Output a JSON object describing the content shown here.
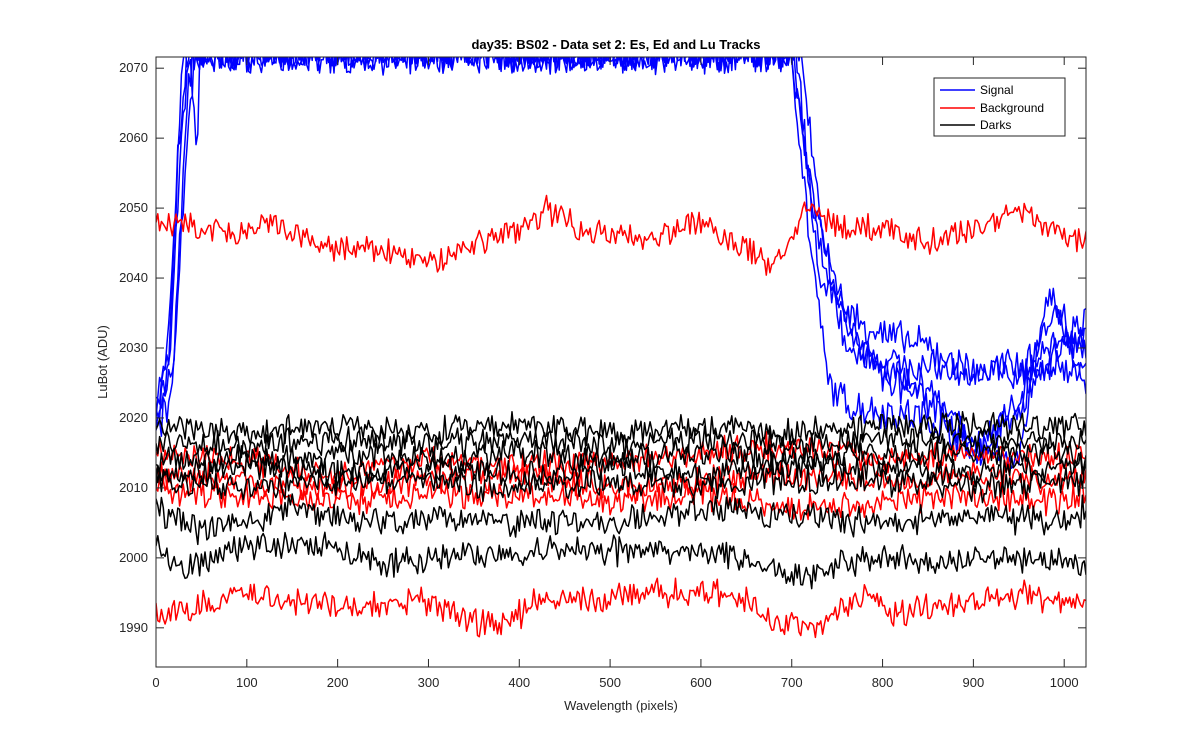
{
  "chart_data": {
    "type": "line",
    "title": "day35: BS02 - Data set 2: Es, Ed and Lu Tracks",
    "xlabel": "Wavelength (pixels)",
    "ylabel": "LuBot (ADU)",
    "xlim": [
      0,
      1024
    ],
    "ylim": [
      1984.4,
      2071.6
    ],
    "xticks": [
      0,
      100,
      200,
      300,
      400,
      500,
      600,
      700,
      800,
      900,
      1000
    ],
    "yticks": [
      1990,
      2000,
      2010,
      2020,
      2030,
      2040,
      2050,
      2060,
      2070
    ],
    "grid": false,
    "legend": {
      "position": "top-right",
      "entries": [
        "Signal",
        "Background",
        "Darks"
      ]
    },
    "colors": {
      "Signal": "#0000ff",
      "Background": "#ff0000",
      "Darks": "#000000"
    },
    "series": [
      {
        "group": "Signal",
        "points": [
          [
            0,
            2024
          ],
          [
            10,
            2026
          ],
          [
            20,
            2045
          ],
          [
            30,
            2072
          ],
          [
            60,
            2072
          ],
          [
            700,
            2072
          ],
          [
            720,
            2045
          ],
          [
            740,
            2025
          ],
          [
            760,
            2022
          ],
          [
            800,
            2021
          ],
          [
            850,
            2020
          ],
          [
            900,
            2016
          ],
          [
            950,
            2022
          ],
          [
            1024,
            2035
          ]
        ]
      },
      {
        "group": "Signal",
        "points": [
          [
            0,
            2022
          ],
          [
            15,
            2030
          ],
          [
            25,
            2060
          ],
          [
            35,
            2072
          ],
          [
            50,
            2072
          ],
          [
            705,
            2072
          ],
          [
            730,
            2040
          ],
          [
            770,
            2034
          ],
          [
            800,
            2032
          ],
          [
            850,
            2030
          ],
          [
            900,
            2026
          ],
          [
            950,
            2028
          ],
          [
            1024,
            2032
          ]
        ]
      },
      {
        "group": "Signal",
        "points": [
          [
            0,
            2020
          ],
          [
            15,
            2028
          ],
          [
            28,
            2060
          ],
          [
            38,
            2072
          ],
          [
            45,
            2055
          ],
          [
            48,
            2072
          ],
          [
            710,
            2072
          ],
          [
            735,
            2045
          ],
          [
            760,
            2030
          ],
          [
            800,
            2028
          ],
          [
            850,
            2027
          ],
          [
            900,
            2027
          ],
          [
            950,
            2026
          ],
          [
            1024,
            2028
          ]
        ]
      },
      {
        "group": "Signal",
        "points": [
          [
            0,
            2018
          ],
          [
            18,
            2024
          ],
          [
            30,
            2050
          ],
          [
            42,
            2072
          ],
          [
            700,
            2072
          ],
          [
            725,
            2050
          ],
          [
            760,
            2034
          ],
          [
            800,
            2027
          ],
          [
            850,
            2024
          ],
          [
            900,
            2016
          ],
          [
            950,
            2014
          ],
          [
            980,
            2038
          ],
          [
            1024,
            2030
          ]
        ]
      },
      {
        "group": "Signal",
        "points": [
          [
            0,
            2020
          ],
          [
            20,
            2028
          ],
          [
            32,
            2062
          ],
          [
            40,
            2072
          ],
          [
            702,
            2072
          ],
          [
            728,
            2045
          ],
          [
            765,
            2032
          ],
          [
            810,
            2025
          ],
          [
            860,
            2022
          ],
          [
            905,
            2015
          ],
          [
            945,
            2020
          ],
          [
            990,
            2036
          ],
          [
            1024,
            2024
          ]
        ]
      },
      {
        "group": "Background",
        "points": [
          [
            0,
            2048
          ],
          [
            50,
            2047
          ],
          [
            100,
            2046
          ],
          [
            130,
            2048
          ],
          [
            150,
            2046
          ],
          [
            200,
            2044
          ],
          [
            250,
            2044
          ],
          [
            300,
            2042
          ],
          [
            350,
            2045
          ],
          [
            400,
            2047
          ],
          [
            430,
            2050
          ],
          [
            470,
            2047
          ],
          [
            500,
            2046
          ],
          [
            550,
            2046
          ],
          [
            600,
            2048
          ],
          [
            620,
            2046
          ],
          [
            650,
            2044
          ],
          [
            680,
            2042
          ],
          [
            720,
            2050
          ],
          [
            760,
            2047
          ],
          [
            800,
            2047
          ],
          [
            850,
            2045
          ],
          [
            900,
            2047
          ],
          [
            950,
            2050
          ],
          [
            1000,
            2046
          ],
          [
            1024,
            2045
          ]
        ]
      },
      {
        "group": "Background",
        "points": [
          [
            0,
            2015
          ],
          [
            100,
            2014
          ],
          [
            200,
            2012
          ],
          [
            300,
            2014
          ],
          [
            400,
            2013
          ],
          [
            500,
            2014
          ],
          [
            600,
            2015
          ],
          [
            700,
            2016
          ],
          [
            800,
            2014
          ],
          [
            900,
            2015
          ],
          [
            1000,
            2014
          ],
          [
            1024,
            2015
          ]
        ]
      },
      {
        "group": "Background",
        "points": [
          [
            0,
            2012
          ],
          [
            100,
            2011
          ],
          [
            200,
            2010
          ],
          [
            300,
            2011
          ],
          [
            400,
            2012
          ],
          [
            500,
            2010
          ],
          [
            600,
            2011
          ],
          [
            700,
            2012
          ],
          [
            800,
            2011
          ],
          [
            900,
            2012
          ],
          [
            1000,
            2011
          ],
          [
            1024,
            2012
          ]
        ]
      },
      {
        "group": "Background",
        "points": [
          [
            0,
            2010
          ],
          [
            100,
            2009
          ],
          [
            200,
            2008
          ],
          [
            300,
            2009
          ],
          [
            400,
            2009
          ],
          [
            500,
            2008
          ],
          [
            600,
            2009
          ],
          [
            700,
            2007
          ],
          [
            800,
            2008
          ],
          [
            900,
            2009
          ],
          [
            1000,
            2008
          ],
          [
            1024,
            2009
          ]
        ]
      },
      {
        "group": "Background",
        "points": [
          [
            0,
            1992
          ],
          [
            50,
            1993
          ],
          [
            100,
            1995
          ],
          [
            150,
            1994
          ],
          [
            200,
            1993
          ],
          [
            250,
            1993
          ],
          [
            300,
            1994
          ],
          [
            350,
            1991
          ],
          [
            380,
            1990
          ],
          [
            420,
            1994
          ],
          [
            500,
            1994
          ],
          [
            550,
            1995
          ],
          [
            600,
            1995
          ],
          [
            650,
            1994
          ],
          [
            690,
            1990
          ],
          [
            740,
            1991
          ],
          [
            780,
            1995
          ],
          [
            810,
            1992
          ],
          [
            850,
            1993
          ],
          [
            900,
            1994
          ],
          [
            950,
            1995
          ],
          [
            1000,
            1993
          ],
          [
            1024,
            1994
          ]
        ]
      },
      {
        "group": "Darks",
        "points": [
          [
            0,
            2019
          ],
          [
            100,
            2018
          ],
          [
            200,
            2019
          ],
          [
            300,
            2018
          ],
          [
            400,
            2019
          ],
          [
            500,
            2018
          ],
          [
            600,
            2019
          ],
          [
            700,
            2018
          ],
          [
            800,
            2019
          ],
          [
            900,
            2019
          ],
          [
            1000,
            2019
          ],
          [
            1024,
            2018
          ]
        ]
      },
      {
        "group": "Darks",
        "points": [
          [
            0,
            2017
          ],
          [
            100,
            2016
          ],
          [
            200,
            2017
          ],
          [
            300,
            2016
          ],
          [
            400,
            2017
          ],
          [
            500,
            2016
          ],
          [
            600,
            2017
          ],
          [
            700,
            2016
          ],
          [
            800,
            2017
          ],
          [
            900,
            2017
          ],
          [
            1000,
            2017
          ],
          [
            1024,
            2017
          ]
        ]
      },
      {
        "group": "Darks",
        "points": [
          [
            0,
            2014
          ],
          [
            100,
            2014
          ],
          [
            200,
            2015
          ],
          [
            300,
            2014
          ],
          [
            400,
            2015
          ],
          [
            500,
            2014
          ],
          [
            600,
            2015
          ],
          [
            700,
            2014
          ],
          [
            800,
            2015
          ],
          [
            900,
            2015
          ],
          [
            1000,
            2015
          ],
          [
            1024,
            2014
          ]
        ]
      },
      {
        "group": "Darks",
        "points": [
          [
            0,
            2012
          ],
          [
            100,
            2013
          ],
          [
            200,
            2012
          ],
          [
            300,
            2013
          ],
          [
            400,
            2012
          ],
          [
            500,
            2013
          ],
          [
            600,
            2012
          ],
          [
            700,
            2013
          ],
          [
            800,
            2013
          ],
          [
            900,
            2012
          ],
          [
            1000,
            2013
          ],
          [
            1024,
            2013
          ]
        ]
      },
      {
        "group": "Darks",
        "points": [
          [
            0,
            2011
          ],
          [
            100,
            2010
          ],
          [
            200,
            2011
          ],
          [
            300,
            2011
          ],
          [
            400,
            2010
          ],
          [
            500,
            2011
          ],
          [
            600,
            2010
          ],
          [
            700,
            2011
          ],
          [
            800,
            2011
          ],
          [
            900,
            2010
          ],
          [
            1000,
            2011
          ],
          [
            1024,
            2011
          ]
        ]
      },
      {
        "group": "Darks",
        "points": [
          [
            0,
            2007
          ],
          [
            50,
            2004
          ],
          [
            100,
            2005
          ],
          [
            150,
            2007
          ],
          [
            200,
            2006
          ],
          [
            250,
            2005
          ],
          [
            300,
            2006
          ],
          [
            400,
            2005
          ],
          [
            500,
            2005
          ],
          [
            600,
            2007
          ],
          [
            700,
            2006
          ],
          [
            800,
            2005
          ],
          [
            900,
            2006
          ],
          [
            1000,
            2005
          ],
          [
            1024,
            2007
          ]
        ]
      },
      {
        "group": "Darks",
        "points": [
          [
            0,
            2002
          ],
          [
            30,
            1998
          ],
          [
            60,
            2000
          ],
          [
            100,
            2002
          ],
          [
            200,
            2002
          ],
          [
            250,
            1999
          ],
          [
            300,
            2000
          ],
          [
            400,
            2001
          ],
          [
            500,
            2001
          ],
          [
            600,
            2001
          ],
          [
            650,
            2000
          ],
          [
            700,
            1997
          ],
          [
            750,
            1999
          ],
          [
            800,
            2000
          ],
          [
            850,
            1999
          ],
          [
            900,
            2000
          ],
          [
            1000,
            2000
          ],
          [
            1024,
            1999
          ]
        ]
      }
    ]
  }
}
